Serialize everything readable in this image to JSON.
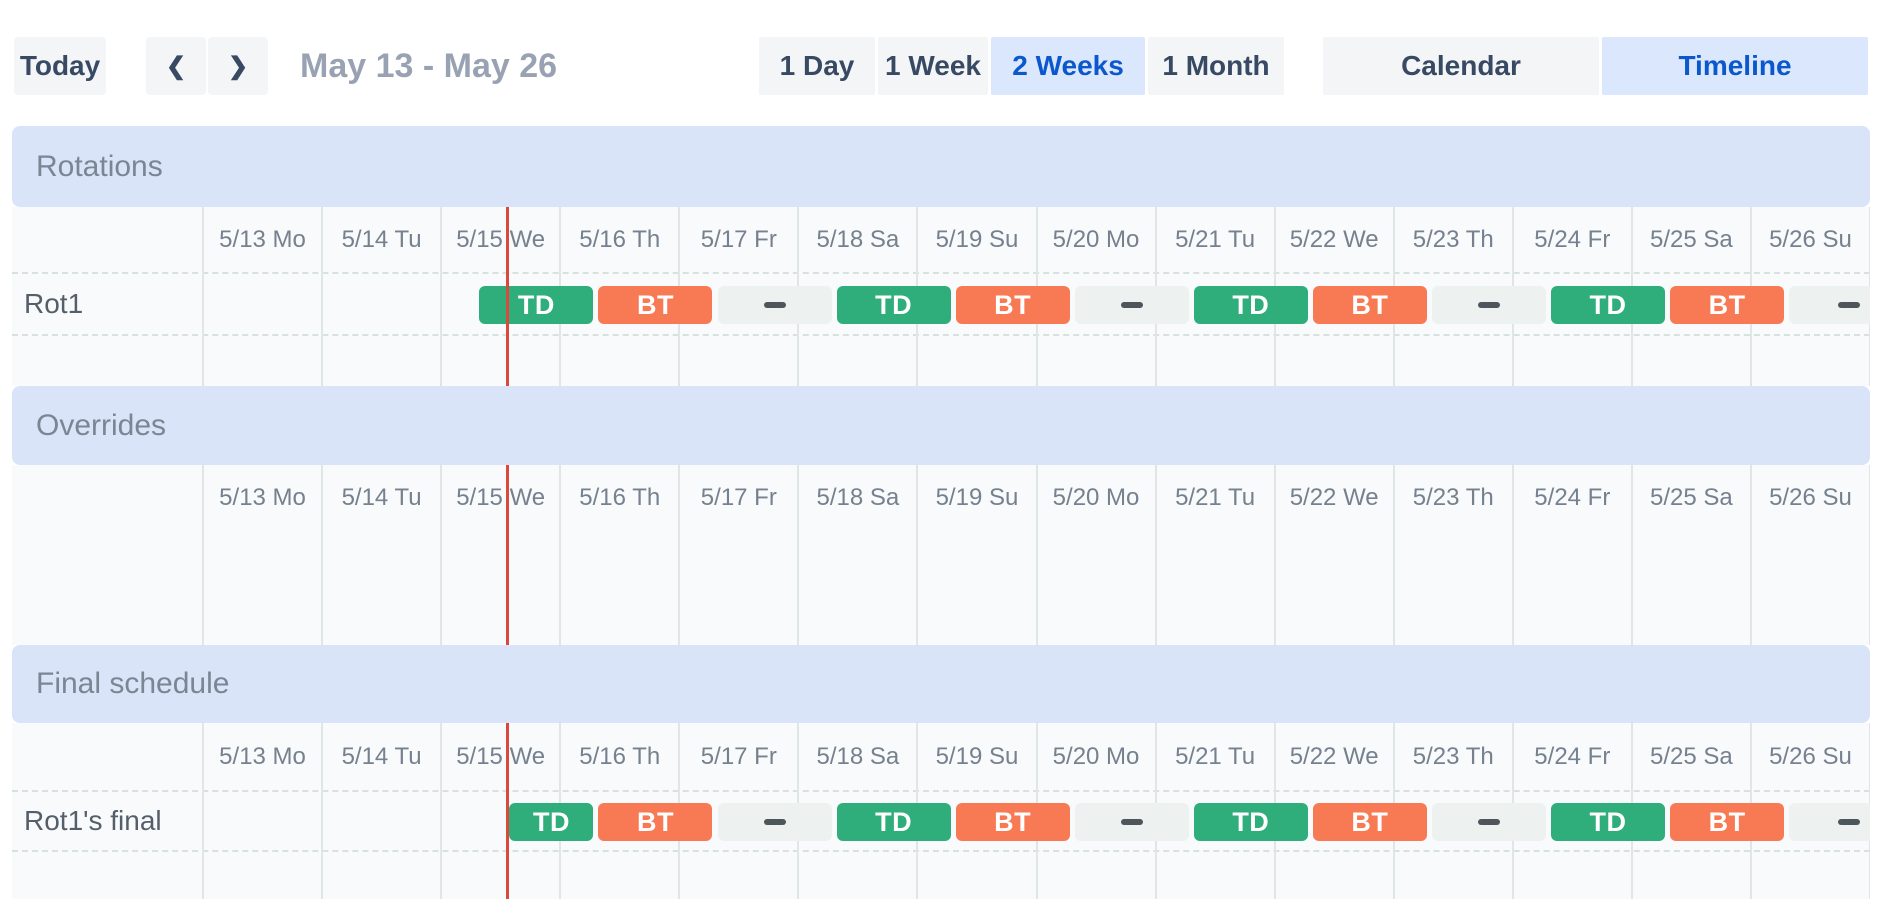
{
  "toolbar": {
    "today_label": "Today",
    "date_range": "May 13 - May 26",
    "zoom_options": [
      {
        "label": "1 Day",
        "selected": false
      },
      {
        "label": "1 Week",
        "selected": false
      },
      {
        "label": "2 Weeks",
        "selected": true
      },
      {
        "label": "1 Month",
        "selected": false
      }
    ],
    "view_options": [
      {
        "label": "Calendar",
        "selected": false
      },
      {
        "label": "Timeline",
        "selected": true
      }
    ]
  },
  "icons": {
    "chevron_left": "❮",
    "chevron_right": "❯"
  },
  "timeline": {
    "day_labels": [
      "5/13 Mo",
      "5/14 Tu",
      "5/15 We",
      "5/16 Th",
      "5/17 Fr",
      "5/18 Sa",
      "5/19 Su",
      "5/20 Mo",
      "5/21 Tu",
      "5/22 We",
      "5/23 Th",
      "5/24 Fr",
      "5/25 Sa",
      "5/26 Su"
    ],
    "days_shown": 14,
    "now_marker_day": 2.553,
    "colors": {
      "td_green": "#2fae7b",
      "bt_orange": "#f87a55",
      "gap_block": "#edf2f0",
      "now_line": "#d9493c",
      "band_blue": "#d9e4f8",
      "accent_blue": "#0b57cc",
      "selected_bg": "#dbe7fd"
    },
    "sections": [
      {
        "title": "Rotations",
        "rows": [
          {
            "label": "Rot1",
            "blocks": [
              {
                "type": "td",
                "label": "TD",
                "start": 2.3,
                "end": 3.3
              },
              {
                "type": "bt",
                "label": "BT",
                "start": 3.3,
                "end": 4.3
              },
              {
                "type": "gap",
                "label": "",
                "start": 4.3,
                "end": 5.3
              },
              {
                "type": "td",
                "label": "TD",
                "start": 5.3,
                "end": 6.3
              },
              {
                "type": "bt",
                "label": "BT",
                "start": 6.3,
                "end": 7.3
              },
              {
                "type": "gap",
                "label": "",
                "start": 7.3,
                "end": 8.3
              },
              {
                "type": "td",
                "label": "TD",
                "start": 8.3,
                "end": 9.3
              },
              {
                "type": "bt",
                "label": "BT",
                "start": 9.3,
                "end": 10.3
              },
              {
                "type": "gap",
                "label": "",
                "start": 10.3,
                "end": 11.3
              },
              {
                "type": "td",
                "label": "TD",
                "start": 11.3,
                "end": 12.3
              },
              {
                "type": "bt",
                "label": "BT",
                "start": 12.3,
                "end": 13.3
              },
              {
                "type": "gap",
                "label": "",
                "start": 13.3,
                "end": 14.35
              }
            ]
          },
          {
            "label": "",
            "blocks": []
          }
        ]
      },
      {
        "title": "Overrides",
        "rows": [
          {
            "label": "",
            "blocks": []
          }
        ]
      },
      {
        "title": "Final schedule",
        "rows": [
          {
            "label": "Rot1's final",
            "blocks": [
              {
                "type": "td",
                "label": "TD",
                "start": 2.553,
                "end": 3.3
              },
              {
                "type": "bt",
                "label": "BT",
                "start": 3.3,
                "end": 4.3
              },
              {
                "type": "gap",
                "label": "",
                "start": 4.3,
                "end": 5.3
              },
              {
                "type": "td",
                "label": "TD",
                "start": 5.3,
                "end": 6.3
              },
              {
                "type": "bt",
                "label": "BT",
                "start": 6.3,
                "end": 7.3
              },
              {
                "type": "gap",
                "label": "",
                "start": 7.3,
                "end": 8.3
              },
              {
                "type": "td",
                "label": "TD",
                "start": 8.3,
                "end": 9.3
              },
              {
                "type": "bt",
                "label": "BT",
                "start": 9.3,
                "end": 10.3
              },
              {
                "type": "gap",
                "label": "",
                "start": 10.3,
                "end": 11.3
              },
              {
                "type": "td",
                "label": "TD",
                "start": 11.3,
                "end": 12.3
              },
              {
                "type": "bt",
                "label": "BT",
                "start": 12.3,
                "end": 13.3
              },
              {
                "type": "gap",
                "label": "",
                "start": 13.3,
                "end": 14.35
              }
            ]
          },
          {
            "label": "",
            "blocks": []
          }
        ]
      }
    ]
  }
}
